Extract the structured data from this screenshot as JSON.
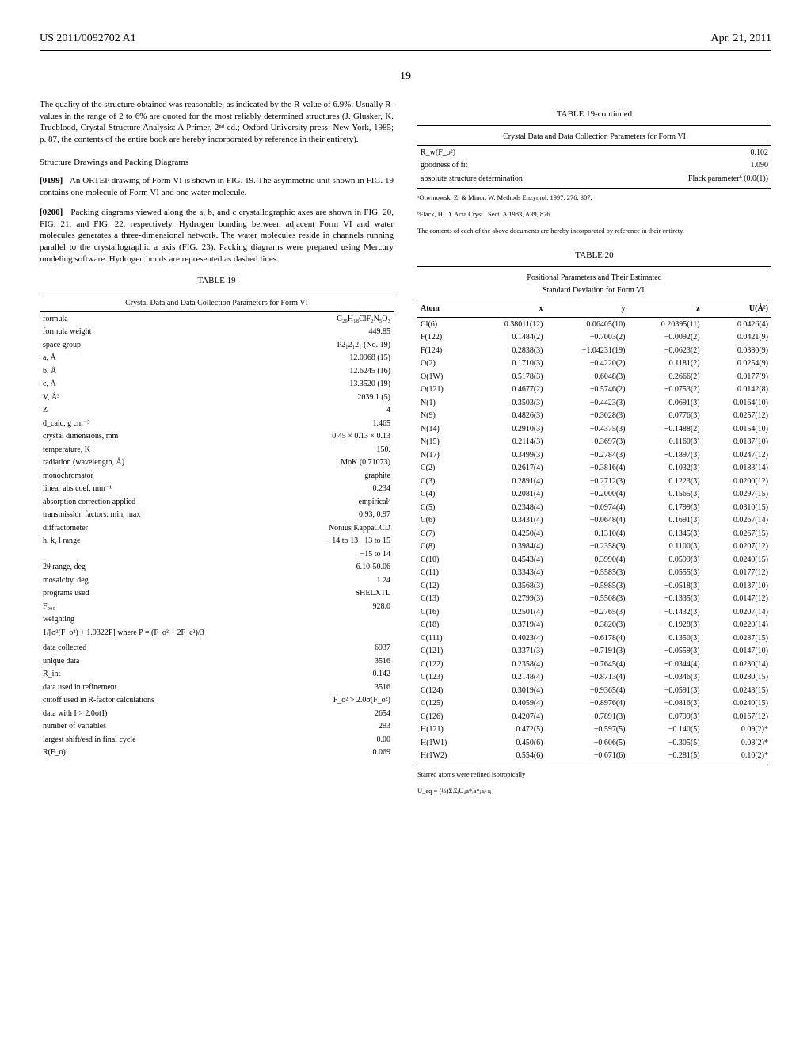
{
  "header": {
    "left": "US 2011/0092702 A1",
    "right": "Apr. 21, 2011"
  },
  "page_number": "19",
  "left_column": {
    "para1": "The quality of the structure obtained was reasonable, as indicated by the R-value of 6.9%. Usually R-values in the range of 2 to 6% are quoted for the most reliably determined structures (J. Glusker, K. Trueblood, Crystal Structure Analysis: A Primer, 2ⁿᵈ ed.; Oxford University press: New York, 1985; p. 87, the contents of the entire book are hereby incorporated by reference in their entirety).",
    "subhead1": "Structure Drawings and Packing Diagrams",
    "para2_num": "[0199]",
    "para2": "An ORTEP drawing of Form VI is shown in FIG. 19. The asymmetric unit shown in FIG. 19 contains one molecule of Form VI and one water molecule.",
    "para3_num": "[0200]",
    "para3": "Packing diagrams viewed along the a, b, and c crystallographic axes are shown in FIG. 20, FIG. 21, and FIG. 22, respectively. Hydrogen bonding between adjacent Form VI and water molecules generates a three-dimensional network. The water molecules reside in channels running parallel to the crystallographic a axis (FIG. 23). Packing diagrams were prepared using Mercury modeling software. Hydrogen bonds are represented as dashed lines.",
    "table19": {
      "title": "TABLE 19",
      "caption": "Crystal Data and Data Collection Parameters for Form VI",
      "rows": [
        [
          "formula",
          "C₂₀H₁₈ClF₂N₅O₃"
        ],
        [
          "formula weight",
          "449.85"
        ],
        [
          "space group",
          "P2₁2₁2₁ (No. 19)"
        ],
        [
          "a, Å",
          "12.0968 (15)"
        ],
        [
          "b, Å",
          "12.6245 (16)"
        ],
        [
          "c, Å",
          "13.3520 (19)"
        ],
        [
          "V, Å³",
          "2039.1 (5)"
        ],
        [
          "Z",
          "4"
        ],
        [
          "d_calc, g cm⁻³",
          "1.465"
        ],
        [
          "crystal dimensions, mm",
          "0.45 × 0.13 × 0.13"
        ],
        [
          "temperature, K",
          "150."
        ],
        [
          "radiation (wavelength, Å)",
          "MoK (0.71073)"
        ],
        [
          "monochromator",
          "graphite"
        ],
        [
          "linear abs coef, mm⁻¹",
          "0.234"
        ],
        [
          "absorption correction applied",
          "empiricalᵃ"
        ],
        [
          "transmission factors: min, max",
          "0.93, 0.97"
        ],
        [
          "diffractometer",
          "Nonius KappaCCD"
        ],
        [
          "h, k, l range",
          "−14 to 13 −13 to 15"
        ],
        [
          "",
          "−15 to 14"
        ],
        [
          "2θ range, deg",
          "6.10-50.06"
        ],
        [
          "mosaicity, deg",
          "1.24"
        ],
        [
          "programs used",
          "SHELXTL"
        ],
        [
          "F₀₀₀",
          "928.0"
        ],
        [
          "weighting",
          ""
        ],
        [
          "1/[σ²(F_o²) + 1.9322P] where P = (F_o² + 2F_c²)/3",
          ""
        ],
        [
          "",
          ""
        ],
        [
          "data collected",
          "6937"
        ],
        [
          "unique data",
          "3516"
        ],
        [
          "R_int",
          "0.142"
        ],
        [
          "data used in refinement",
          "3516"
        ],
        [
          "cutoff used in R-factor calculations",
          "F_o² > 2.0σ(F_o²)"
        ],
        [
          "data with I > 2.0σ(I)",
          "2654"
        ],
        [
          "number of variables",
          "293"
        ],
        [
          "largest shift/esd in final cycle",
          "0.00"
        ],
        [
          "R(F_o)",
          "0.069"
        ]
      ]
    }
  },
  "right_column": {
    "table19cont": {
      "title": "TABLE 19-continued",
      "caption": "Crystal Data and Data Collection Parameters for Form VI",
      "rows": [
        [
          "R_w(F_o²)",
          "0.102"
        ],
        [
          "goodness of fit",
          "1.090"
        ],
        [
          "absolute structure determination",
          "Flack parameterᵇ (0.0(1))"
        ]
      ],
      "footnotes": [
        "ᵃOtwinowski Z. & Minor, W. Methods Enzymol. 1997, 276, 307.",
        "ᵇFlack, H. D. Acta Cryst., Sect. A 1983, A39, 876.",
        "The contents of each of the above documents are hereby incorporated by reference in their entirety."
      ]
    },
    "table20": {
      "title": "TABLE 20",
      "caption_l1": "Positional Parameters and Their Estimated",
      "caption_l2": "Standard Deviation for Form VI.",
      "headers": [
        "Atom",
        "x",
        "y",
        "z",
        "U(Å²)"
      ],
      "rows": [
        [
          "Cl(6)",
          "0.38011(12)",
          "0.06405(10)",
          "0.20395(11)",
          "0.0426(4)"
        ],
        [
          "F(122)",
          "0.1484(2)",
          "−0.7003(2)",
          "−0.0092(2)",
          "0.0421(9)"
        ],
        [
          "F(124)",
          "0.2838(3)",
          "−1.04231(19)",
          "−0.0623(2)",
          "0.0380(9)"
        ],
        [
          "O(2)",
          "0.1710(3)",
          "−0.4220(2)",
          "0.1181(2)",
          "0.0254(9)"
        ],
        [
          "O(1W)",
          "0.5178(3)",
          "−0.6048(3)",
          "−0.2666(2)",
          "0.0177(9)"
        ],
        [
          "O(121)",
          "0.4677(2)",
          "−0.5746(2)",
          "−0.0753(2)",
          "0.0142(8)"
        ],
        [
          "N(1)",
          "0.3503(3)",
          "−0.4423(3)",
          "0.0691(3)",
          "0.0164(10)"
        ],
        [
          "N(9)",
          "0.4826(3)",
          "−0.3028(3)",
          "0.0776(3)",
          "0.0257(12)"
        ],
        [
          "N(14)",
          "0.2910(3)",
          "−0.4375(3)",
          "−0.1488(2)",
          "0.0154(10)"
        ],
        [
          "N(15)",
          "0.2114(3)",
          "−0.3697(3)",
          "−0.1160(3)",
          "0.0187(10)"
        ],
        [
          "N(17)",
          "0.3499(3)",
          "−0.2784(3)",
          "−0.1897(3)",
          "0.0247(12)"
        ],
        [
          "C(2)",
          "0.2617(4)",
          "−0.3816(4)",
          "0.1032(3)",
          "0.0183(14)"
        ],
        [
          "C(3)",
          "0.2891(4)",
          "−0.2712(3)",
          "0.1223(3)",
          "0.0200(12)"
        ],
        [
          "C(4)",
          "0.2081(4)",
          "−0.2000(4)",
          "0.1565(3)",
          "0.0297(15)"
        ],
        [
          "C(5)",
          "0.2348(4)",
          "−0.0974(4)",
          "0.1799(3)",
          "0.0310(15)"
        ],
        [
          "C(6)",
          "0.3431(4)",
          "−0.0648(4)",
          "0.1691(3)",
          "0.0267(14)"
        ],
        [
          "C(7)",
          "0.4250(4)",
          "−0.1310(4)",
          "0.1345(3)",
          "0.0267(15)"
        ],
        [
          "C(8)",
          "0.3984(4)",
          "−0.2358(3)",
          "0.1100(3)",
          "0.0207(12)"
        ],
        [
          "C(10)",
          "0.4543(4)",
          "−0.3990(4)",
          "0.0599(3)",
          "0.0240(15)"
        ],
        [
          "C(11)",
          "0.3343(4)",
          "−0.5585(3)",
          "0.0555(3)",
          "0.0177(12)"
        ],
        [
          "C(12)",
          "0.3568(3)",
          "−0.5985(3)",
          "−0.0518(3)",
          "0.0137(10)"
        ],
        [
          "C(13)",
          "0.2799(3)",
          "−0.5508(3)",
          "−0.1335(3)",
          "0.0147(12)"
        ],
        [
          "C(16)",
          "0.2501(4)",
          "−0.2765(3)",
          "−0.1432(3)",
          "0.0207(14)"
        ],
        [
          "C(18)",
          "0.3719(4)",
          "−0.3820(3)",
          "−0.1928(3)",
          "0.0220(14)"
        ],
        [
          "C(111)",
          "0.4023(4)",
          "−0.6178(4)",
          "0.1350(3)",
          "0.0287(15)"
        ],
        [
          "C(121)",
          "0.3371(3)",
          "−0.7191(3)",
          "−0.0559(3)",
          "0.0147(10)"
        ],
        [
          "C(122)",
          "0.2358(4)",
          "−0.7645(4)",
          "−0.0344(4)",
          "0.0230(14)"
        ],
        [
          "C(123)",
          "0.2148(4)",
          "−0.8713(4)",
          "−0.0346(3)",
          "0.0280(15)"
        ],
        [
          "C(124)",
          "0.3019(4)",
          "−0.9365(4)",
          "−0.0591(3)",
          "0.0243(15)"
        ],
        [
          "C(125)",
          "0.4059(4)",
          "−0.8976(4)",
          "−0.0816(3)",
          "0.0240(15)"
        ],
        [
          "C(126)",
          "0.4207(4)",
          "−0.7891(3)",
          "−0.0799(3)",
          "0.0167(12)"
        ],
        [
          "H(121)",
          "0.472(5)",
          "−0.597(5)",
          "−0.140(5)",
          "0.09(2)*"
        ],
        [
          "H(1W1)",
          "0.450(6)",
          "−0.606(5)",
          "−0.305(5)",
          "0.08(2)*"
        ],
        [
          "H(1W2)",
          "0.554(6)",
          "−0.671(6)",
          "−0.281(5)",
          "0.10(2)*"
        ]
      ],
      "footnotes": [
        "Starred atoms were refined isotropically",
        "U_eq = (⅓)ΣᵢΣⱼUᵢⱼa*ᵢa*ⱼaᵢ·aⱼ"
      ]
    }
  }
}
